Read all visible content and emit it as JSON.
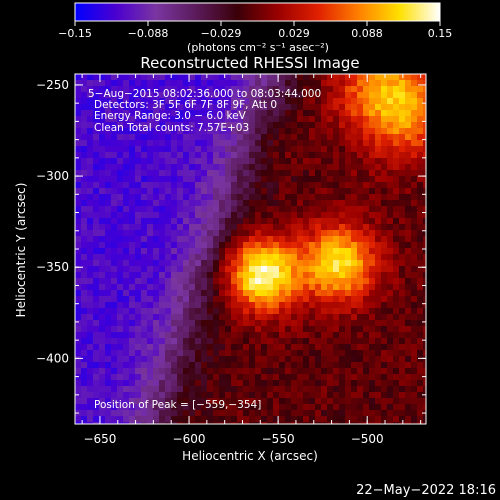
{
  "colorbar": {
    "ticks": [
      "−0.15",
      "−0.088",
      "−0.029",
      "0.029",
      "0.088",
      "0.15"
    ],
    "unit": "(photons cm⁻² s⁻¹ asec⁻²)",
    "colors": [
      "#0000ff",
      "#4a00d0",
      "#7a35a0",
      "#5a1a5a",
      "#3a0008",
      "#9a0000",
      "#e02000",
      "#ff8000",
      "#ffe000",
      "#ffffff"
    ]
  },
  "plot": {
    "title": "Reconstructed RHESSI Image",
    "info": [
      "5−Aug−2015 08:02:36.000 to 08:03:44.000",
      "Detectors: 3F 5F 6F 7F 8F 9F, Att 0",
      "Energy Range: 3.0 − 6.0 keV",
      "Clean     Total counts: 7.57E+03"
    ],
    "peak_label": "Position of Peak = [−559,−354]"
  },
  "timestamp": "22−May−2022 18:16",
  "chart_data": {
    "type": "heatmap",
    "title": "Reconstructed RHESSI Image",
    "xlabel": "Heliocentric X (arcsec)",
    "ylabel": "Heliocentric Y (arcsec)",
    "xlim": [
      -664,
      -467
    ],
    "ylim": [
      -436,
      -244
    ],
    "xticks": [
      -650,
      -600,
      -550,
      -500
    ],
    "yticks": [
      -250,
      -300,
      -350,
      -400
    ],
    "xtick_labels": [
      "−650",
      "−600",
      "−550",
      "−500"
    ],
    "ytick_labels": [
      "−250",
      "−300",
      "−350",
      "−400"
    ],
    "zlim": [
      -0.15,
      0.15
    ],
    "grid": false,
    "sources": [
      {
        "x": -559,
        "y": -354,
        "peak": 0.15,
        "sigma": 14
      },
      {
        "x": -516,
        "y": -348,
        "peak": 0.125,
        "sigma": 15
      },
      {
        "x": -484,
        "y": -258,
        "peak": 0.12,
        "sigma": 20
      }
    ],
    "peak_position": [
      -559,
      -354
    ]
  }
}
